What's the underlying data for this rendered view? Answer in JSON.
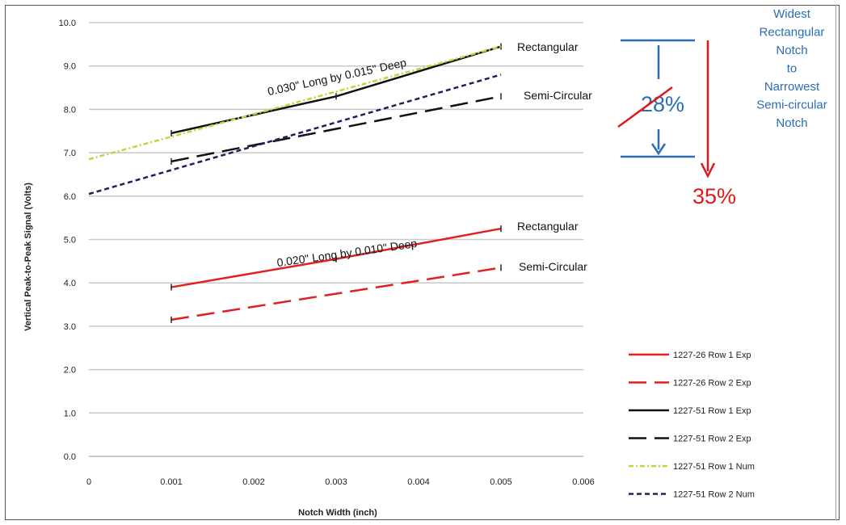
{
  "chart_data": {
    "type": "line",
    "xlabel": "Notch Width (inch)",
    "ylabel": "Vertical Peak-to-Peak Signal (Volts)",
    "xlim": [
      0,
      0.006
    ],
    "ylim": [
      0,
      10
    ],
    "x_ticks": [
      "0",
      "0.001",
      "0.002",
      "0.003",
      "0.004",
      "0.005",
      "0.006"
    ],
    "y_ticks": [
      "0.0",
      "1.0",
      "2.0",
      "3.0",
      "4.0",
      "5.0",
      "6.0",
      "7.0",
      "8.0",
      "9.0",
      "10.0"
    ],
    "grid": true,
    "legend_position": "bottom-right",
    "series": [
      {
        "name": "1227-26 Row 1 Exp",
        "color": "#e02020",
        "style": "solid",
        "x": [
          0.001,
          0.003,
          0.005
        ],
        "y": [
          3.9,
          4.55,
          5.25
        ]
      },
      {
        "name": "1227-26 Row 2 Exp",
        "color": "#e02020",
        "style": "long-dash",
        "x": [
          0.001,
          0.005
        ],
        "y": [
          3.15,
          4.35
        ]
      },
      {
        "name": "1227-51 Row 1 Exp",
        "color": "#111111",
        "style": "solid",
        "x": [
          0.001,
          0.003,
          0.005
        ],
        "y": [
          7.45,
          8.3,
          9.45
        ]
      },
      {
        "name": "1227-51 Row 2 Exp",
        "color": "#111111",
        "style": "long-dash",
        "x": [
          0.001,
          0.005
        ],
        "y": [
          6.8,
          8.3
        ]
      },
      {
        "name": "1227-51 Row 1 Num",
        "color": "#c8d23a",
        "style": "dash-dot",
        "x": [
          0,
          0.005
        ],
        "y": [
          6.85,
          9.45
        ]
      },
      {
        "name": "1227-51 Row 2 Num",
        "color": "#1a2360",
        "style": "short-dash",
        "x": [
          0,
          0.005
        ],
        "y": [
          6.05,
          8.8
        ]
      }
    ],
    "annotations": {
      "top_group": "0.030\" Long by 0.015\" Deep",
      "bottom_group": "0.020\" Long by 0.010\" Deep",
      "rect_top": "Rectangular",
      "semi_top": "Semi-Circular",
      "rect_bottom": "Rectangular",
      "semi_bottom": "Semi-Circular",
      "pct_blue": "28%",
      "pct_red": "35%",
      "note_lines": [
        "Widest",
        "Rectangular",
        "Notch",
        "to",
        "Narrowest",
        "Semi-circular",
        "Notch"
      ]
    }
  }
}
